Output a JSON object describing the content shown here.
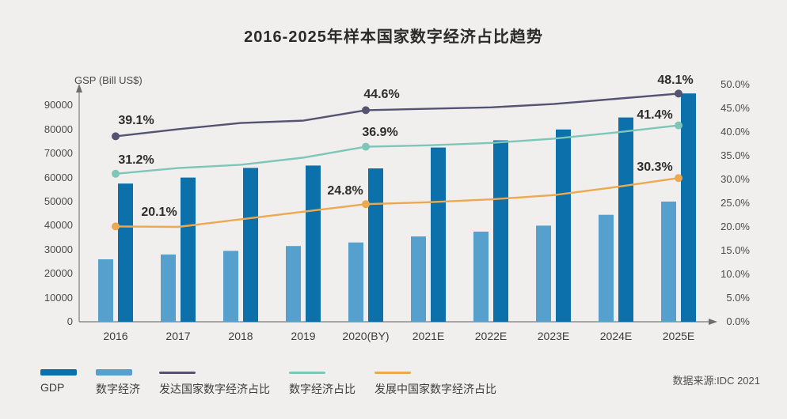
{
  "title": "2016-2025年样本国家数字经济占比趋势",
  "source": "数据来源:IDC 2021",
  "background_color": "#f0efee",
  "left_axis": {
    "title": "GSP (Bill US$)",
    "ticks": [
      "0",
      "10000",
      "20000",
      "30000",
      "40000",
      "50000",
      "60000",
      "70000",
      "80000",
      "90000"
    ]
  },
  "right_axis": {
    "ticks": [
      "0.0%",
      "5.0%",
      "10.0%",
      "15.0%",
      "20.0%",
      "25.0%",
      "30.0%",
      "35.0%",
      "40.0%",
      "45.0%",
      "50.0%"
    ]
  },
  "chart_data": {
    "type": "combo-bar-line",
    "categories": [
      "2016",
      "2017",
      "2018",
      "2019",
      "2020(BY)",
      "2021E",
      "2022E",
      "2023E",
      "2024E",
      "2025E"
    ],
    "left_axis_label": "GSP (Bill US$)",
    "left_ylim": [
      0,
      90000
    ],
    "right_ylim_pct": [
      0,
      50
    ],
    "grid": "off",
    "legend_position": "bottom",
    "bar_series": [
      {
        "name": "GDP",
        "color": "#0c70aa",
        "axis": "left",
        "values": [
          57500,
          60000,
          64000,
          65000,
          63800,
          72500,
          75500,
          80000,
          85000,
          95000
        ]
      },
      {
        "name": "数字经济",
        "color": "#55a0cc",
        "axis": "left",
        "values": [
          26000,
          28000,
          29500,
          31500,
          33000,
          35500,
          37500,
          40000,
          44500,
          50000
        ]
      }
    ],
    "line_series": [
      {
        "name": "发达国家数字经济占比",
        "color": "#555372",
        "axis": "right",
        "values_pct": [
          39.1,
          40.6,
          41.9,
          42.4,
          44.6,
          44.9,
          45.2,
          45.9,
          47.0,
          48.1
        ]
      },
      {
        "name": "数字经济占比",
        "color": "#7dc6b8",
        "axis": "right",
        "values_pct": [
          31.2,
          32.4,
          33.1,
          34.6,
          36.9,
          37.2,
          37.7,
          38.6,
          39.9,
          41.4
        ]
      },
      {
        "name": "发展中国家数字经济占比",
        "color": "#eca94f",
        "axis": "right",
        "values_pct": [
          20.1,
          20.0,
          21.6,
          23.2,
          24.8,
          25.2,
          25.8,
          26.7,
          28.4,
          30.3
        ]
      }
    ],
    "annotations": [
      {
        "series": 0,
        "index": 0,
        "text": "39.1%"
      },
      {
        "series": 0,
        "index": 4,
        "text": "44.6%"
      },
      {
        "series": 0,
        "index": 9,
        "text": "48.1%"
      },
      {
        "series": 1,
        "index": 0,
        "text": "31.2%"
      },
      {
        "series": 1,
        "index": 4,
        "text": "36.9%"
      },
      {
        "series": 1,
        "index": 9,
        "text": "41.4%"
      },
      {
        "series": 2,
        "index": 0,
        "text": "20.1%"
      },
      {
        "series": 2,
        "index": 4,
        "text": "24.8%"
      },
      {
        "series": 2,
        "index": 9,
        "text": "30.3%"
      }
    ]
  },
  "legend": {
    "items": [
      {
        "label": "GDP",
        "type": "bar",
        "color": "#0c70aa"
      },
      {
        "label": "数字经济",
        "type": "bar",
        "color": "#55a0cc"
      },
      {
        "label": "发达国家数字经济占比",
        "type": "line",
        "color": "#555372"
      },
      {
        "label": "数字经济占比",
        "type": "line",
        "color": "#7dc6b8"
      },
      {
        "label": "发展中国家数字经济占比",
        "type": "line",
        "color": "#eca94f"
      }
    ]
  }
}
